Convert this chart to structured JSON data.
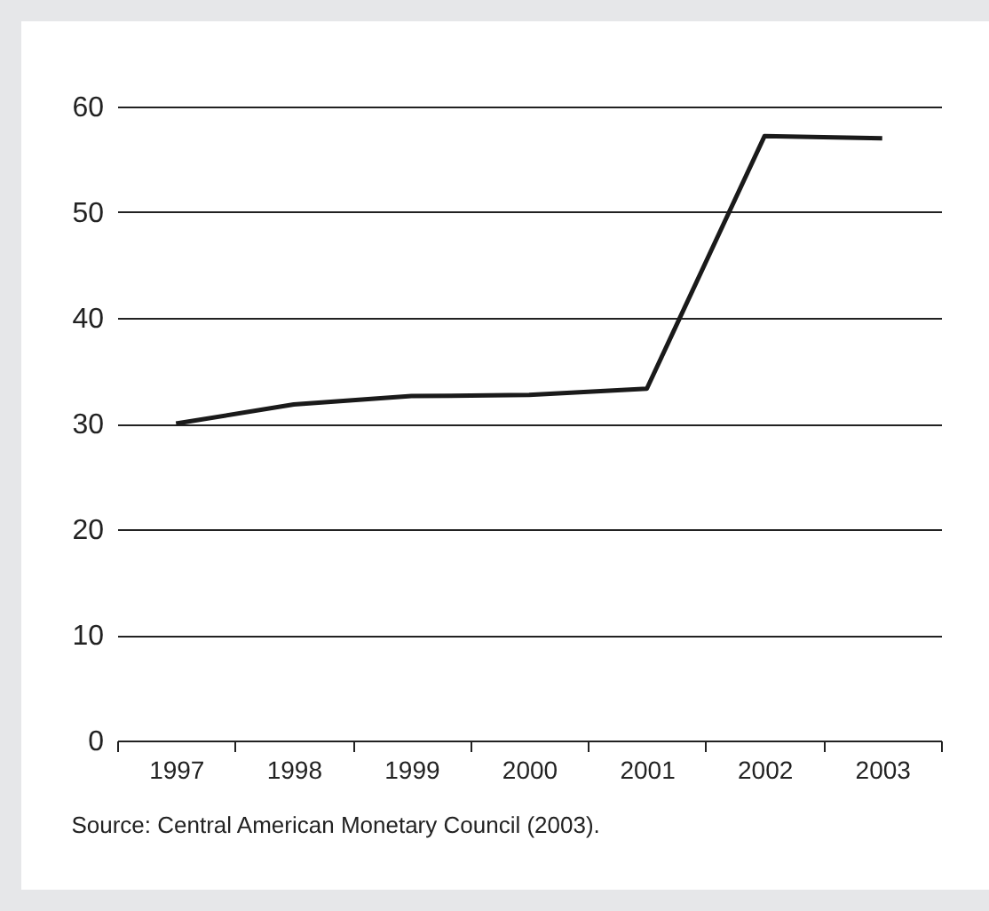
{
  "chart_data": {
    "type": "line",
    "categories": [
      "1997",
      "1998",
      "1999",
      "2000",
      "2001",
      "2002",
      "2003"
    ],
    "series": [
      {
        "color": "#1a1a1a",
        "values": [
          30,
          31.8,
          32.6,
          32.7,
          33.3,
          57.2,
          57.0
        ]
      }
    ],
    "ylim": [
      0,
      60
    ],
    "yticks": [
      0,
      10,
      20,
      30,
      40,
      50,
      60
    ],
    "grid": "y",
    "annotations": [
      "Source: Central American Monetary Council (2003)."
    ]
  }
}
